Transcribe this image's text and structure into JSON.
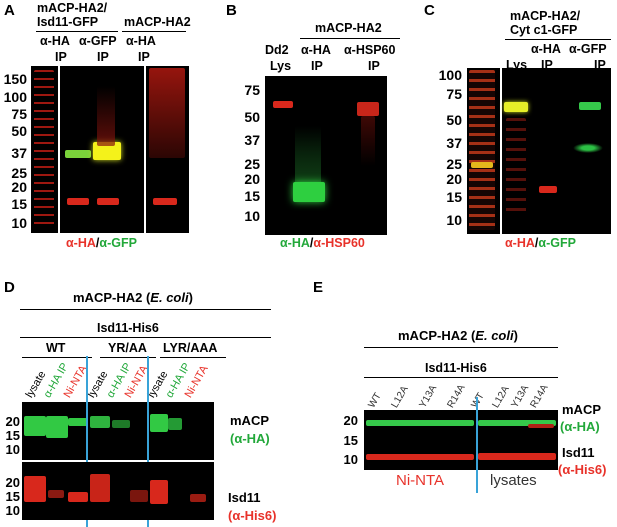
{
  "panels": {
    "A": {
      "letter": "A",
      "group1_line1": "mACP-HA2/",
      "group1_line2": "Isd11-GFP",
      "group2_line1": "mACP-HA2",
      "lane_ab": [
        "α-HA",
        "α-GFP",
        "α-HA"
      ],
      "lane_ip": [
        "IP",
        "IP",
        "IP"
      ],
      "markers": [
        "150",
        "100",
        "75",
        "50",
        "37",
        "25",
        "20",
        "15",
        "10"
      ],
      "cap_red": "α-HA",
      "cap_sep": "/",
      "cap_green": "α-GFP"
    },
    "B": {
      "letter": "B",
      "group_label": "mACP-HA2",
      "lane_top": [
        "Dd2",
        "α-HA",
        "α-HSP60"
      ],
      "lane_bottom": [
        "Lys",
        "IP",
        "IP"
      ],
      "markers": [
        "75",
        "50",
        "37",
        "25",
        "20",
        "15",
        "10"
      ],
      "cap_green": "α-HA",
      "cap_sep": "/",
      "cap_red": "α-HSP60"
    },
    "C": {
      "letter": "C",
      "group_line1": "mACP-HA2/",
      "group_line2": "Cyt c1-GFP",
      "lane_top": [
        "α-HA",
        "α-GFP"
      ],
      "lane_bottom": [
        "Lys",
        "IP",
        "IP"
      ],
      "markers": [
        "100",
        "75",
        "50",
        "37",
        "25",
        "20",
        "15",
        "10"
      ],
      "cap_red": "α-HA",
      "cap_sep": "/",
      "cap_green": "α-GFP"
    },
    "D": {
      "letter": "D",
      "title_main": "mACP-HA2 (",
      "title_italic": "E. coli",
      "title_end": ")",
      "subtitle": "Isd11-His6",
      "groups": [
        "WT",
        "YR/AA",
        "LYR/AAA"
      ],
      "lanes": [
        "lysate",
        "α-HA IP",
        "Ni-NTA",
        "lysate",
        "α-HA IP",
        "Ni-NTA",
        "lysate",
        "α-HA IP",
        "Ni-NTA"
      ],
      "markers_top": [
        "20",
        "15",
        "10"
      ],
      "markers_bottom": [
        "20",
        "15",
        "10"
      ],
      "side_top_1": "mACP",
      "side_top_2": "(α-HA)",
      "side_bottom_1": "Isd11",
      "side_bottom_2": "(α-His6)"
    },
    "E": {
      "letter": "E",
      "title_main": "mACP-HA2 (",
      "title_italic": "E. coli",
      "title_end": ")",
      "subtitle": "Isd11-His6",
      "lanes": [
        "WT",
        "L12A",
        "Y13A",
        "R14A",
        "WT",
        "L12A",
        "Y13A",
        "R14A"
      ],
      "markers": [
        "20",
        "15",
        "10"
      ],
      "side_top_1": "mACP",
      "side_top_2": "(α-HA)",
      "side_bottom_1": "Isd11",
      "side_bottom_2": "(α-His6)",
      "bottom_left": "Ni-NTA",
      "bottom_right": "lysates"
    }
  },
  "colors": {
    "red_signal": "#e8322a",
    "green_signal": "#22a83a",
    "divider_blue": "#39a3d8"
  }
}
